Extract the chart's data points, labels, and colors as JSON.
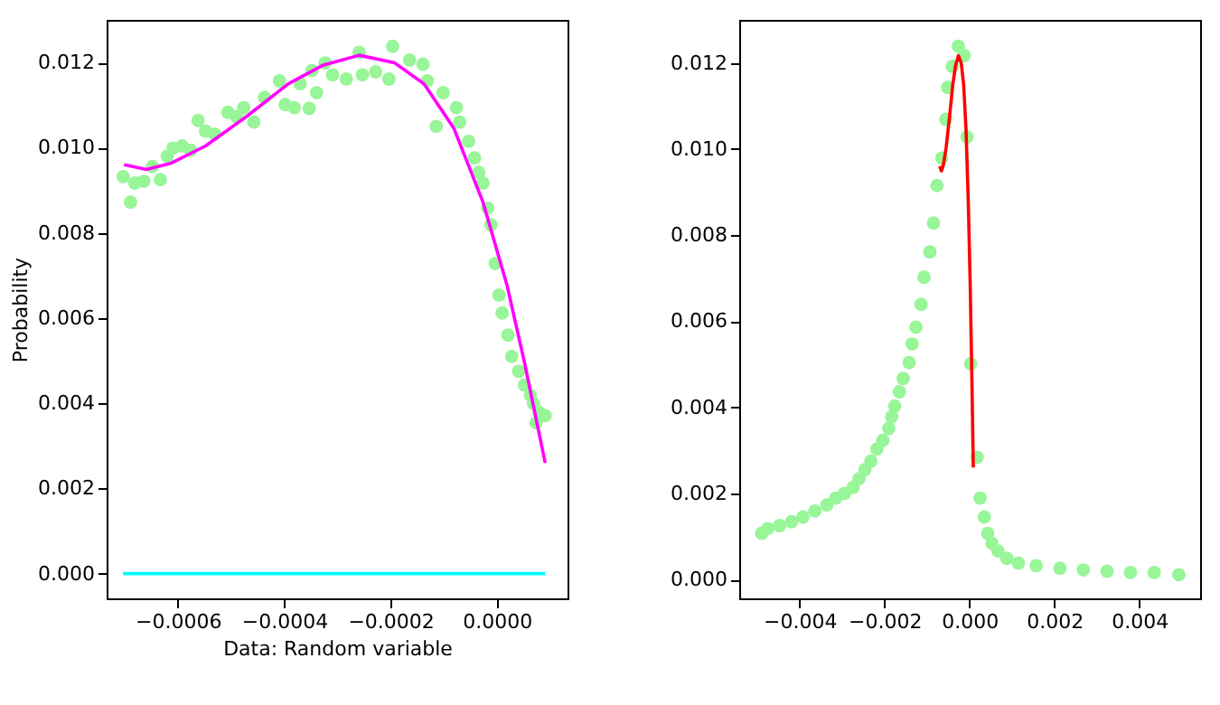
{
  "chart_data": [
    {
      "type": "scatter",
      "xlabel": "Data: Random variable",
      "ylabel": "Probability",
      "grid": false,
      "xlim": [
        -0.000734,
        0.000133
      ],
      "ylim": [
        -0.00058,
        0.013
      ],
      "xticks": [
        {
          "value": -0.0006,
          "label": "−0.0006"
        },
        {
          "value": -0.0004,
          "label": "−0.0004"
        },
        {
          "value": -0.0002,
          "label": "−0.0002"
        },
        {
          "value": 0,
          "label": "0.0000"
        }
      ],
      "yticks": [
        {
          "value": 0,
          "label": "0.000"
        },
        {
          "value": 0.002,
          "label": "0.002"
        },
        {
          "value": 0.004,
          "label": "0.004"
        },
        {
          "value": 0.006,
          "label": "0.006"
        },
        {
          "value": 0.008,
          "label": "0.008"
        },
        {
          "value": 0.01,
          "label": "0.010"
        },
        {
          "value": 0.012,
          "label": "0.012"
        }
      ],
      "series": [
        {
          "marker": "circle",
          "color": "#98f598",
          "x": [
            -0.000703,
            -0.000689,
            -0.000681,
            -0.000664,
            -0.000648,
            -0.000633,
            -0.00062,
            -0.000609,
            -0.000592,
            -0.000576,
            -0.000562,
            -0.000548,
            -0.000531,
            -0.000506,
            -0.00049,
            -0.000476,
            -0.000457,
            -0.000437,
            -0.000409,
            -0.000398,
            -0.000381,
            -0.00037,
            -0.000353,
            -0.000339,
            -0.000348,
            -0.000323,
            -0.000309,
            -0.000283,
            -0.000259,
            -0.000253,
            -0.000228,
            -0.000203,
            -0.000196,
            -0.000164,
            -0.000139,
            -0.000131,
            -0.000114,
            -0.000101,
            -7.6e-05,
            -7e-05,
            -5.3e-05,
            -4.2e-05,
            -3.4e-05,
            -2.6e-05,
            -1.7e-05,
            -1.1e-05,
            -3e-06,
            4e-06,
            1e-05,
            2.1e-05,
            2.8e-05,
            4.1e-05,
            5.2e-05,
            6.3e-05,
            6.9e-05,
            8e-05,
            9.1e-05,
            7.4e-05
          ],
          "values": [
            0.00932,
            0.00872,
            0.00917,
            0.00921,
            0.00956,
            0.00925,
            0.0098,
            0.00999,
            0.01004,
            0.00994,
            0.01064,
            0.01039,
            0.01032,
            0.01083,
            0.01073,
            0.01094,
            0.0106,
            0.01118,
            0.01157,
            0.01101,
            0.01094,
            0.0115,
            0.01092,
            0.01129,
            0.01181,
            0.01199,
            0.01171,
            0.01161,
            0.01224,
            0.01171,
            0.01178,
            0.01161,
            0.01238,
            0.01206,
            0.01196,
            0.01157,
            0.0105,
            0.01129,
            0.01094,
            0.0106,
            0.01015,
            0.00976,
            0.00942,
            0.00917,
            0.00858,
            0.00819,
            0.00728,
            0.00654,
            0.00612,
            0.0056,
            0.0051,
            0.00475,
            0.00443,
            0.00419,
            0.00399,
            0.00378,
            0.00371,
            0.00354
          ]
        },
        {
          "type": "line",
          "marker": "none",
          "line_style": "solid",
          "color": "#ff00ff",
          "x": [
            -0.000701,
            -0.000659,
            -0.000614,
            -0.000548,
            -0.00047,
            -0.000392,
            -0.000326,
            -0.000259,
            -0.000192,
            -0.000137,
            -8.1e-05,
            -2.6e-05,
            1.9e-05,
            5.2e-05,
            9.1e-05
          ],
          "values": [
            0.0096,
            0.00949,
            0.00963,
            0.01004,
            0.01074,
            0.0115,
            0.01194,
            0.01217,
            0.01199,
            0.0115,
            0.01046,
            0.00872,
            0.00678,
            0.00496,
            0.0026
          ]
        },
        {
          "type": "line",
          "marker": "none",
          "line_style": "solid",
          "color": "#00ffff",
          "x": [
            -0.000703,
            9.1e-05
          ],
          "values": [
            0,
            0
          ]
        }
      ]
    },
    {
      "type": "scatter",
      "grid": false,
      "xlim": [
        -0.00542,
        0.00543
      ],
      "ylim": [
        -0.00044,
        0.013
      ],
      "xticks": [
        {
          "value": -0.004,
          "label": "−0.004"
        },
        {
          "value": -0.002,
          "label": "−0.002"
        },
        {
          "value": 0,
          "label": "0.000"
        },
        {
          "value": 0.002,
          "label": "0.002"
        },
        {
          "value": 0.004,
          "label": "0.004"
        }
      ],
      "yticks": [
        {
          "value": 0,
          "label": "0.000"
        },
        {
          "value": 0.002,
          "label": "0.002"
        },
        {
          "value": 0.004,
          "label": "0.004"
        },
        {
          "value": 0.006,
          "label": "0.006"
        },
        {
          "value": 0.008,
          "label": "0.008"
        },
        {
          "value": 0.01,
          "label": "0.010"
        },
        {
          "value": 0.012,
          "label": "0.012"
        }
      ],
      "series": [
        {
          "marker": "circle",
          "color": "#98f598",
          "x": [
            -0.00489,
            -0.00475,
            -0.00447,
            -0.00419,
            -0.00392,
            -0.00364,
            -0.00336,
            -0.00315,
            -0.00294,
            -0.00274,
            -0.0026,
            -0.00246,
            -0.00232,
            -0.00218,
            -0.00204,
            -0.0019,
            -0.00183,
            -0.00176,
            -0.00165,
            -0.00156,
            -0.00142,
            -0.00135,
            -0.00126,
            -0.00114,
            -0.00107,
            -0.000931,
            -0.000847,
            -0.000764,
            -0.000653,
            -0.000556,
            -0.000514,
            -0.000403,
            -0.000264,
            -0.000125,
            -5.6e-05,
            3e-05,
            0.00018,
            0.00025,
            0.00035,
            0.00043,
            0.00053,
            0.00067,
            0.00088,
            0.00115,
            0.00157,
            0.00213,
            0.00268,
            0.00324,
            0.00379,
            0.00435,
            0.00493
          ],
          "values": [
            0.00107,
            0.00118,
            0.00125,
            0.00134,
            0.00145,
            0.00159,
            0.00173,
            0.00189,
            0.002,
            0.00214,
            0.00234,
            0.00255,
            0.00275,
            0.00303,
            0.00323,
            0.00351,
            0.00378,
            0.00403,
            0.00436,
            0.00467,
            0.00504,
            0.00547,
            0.00586,
            0.00639,
            0.00702,
            0.00761,
            0.00828,
            0.00915,
            0.00979,
            0.01069,
            0.01143,
            0.01192,
            0.01239,
            0.01217,
            0.01028,
            0.00501,
            0.00284,
            0.00189,
            0.00145,
            0.00107,
            0.00084,
            0.00066,
            0.00049,
            0.00038,
            0.00032,
            0.00026,
            0.00022,
            0.00019,
            0.00016,
            0.00016,
            0.00011
          ]
        },
        {
          "type": "line",
          "marker": "none",
          "line_style": "solid",
          "color": "#ff0000",
          "x": [
            -0.000701,
            -0.000659,
            -0.000614,
            -0.000548,
            -0.00047,
            -0.000392,
            -0.000326,
            -0.000259,
            -0.000192,
            -0.000137,
            -8.1e-05,
            -2.6e-05,
            1.9e-05,
            5.2e-05,
            9.1e-05
          ],
          "values": [
            0.0096,
            0.00949,
            0.00963,
            0.01004,
            0.01074,
            0.0115,
            0.01194,
            0.01217,
            0.01199,
            0.0115,
            0.01046,
            0.00872,
            0.00678,
            0.00496,
            0.0026
          ]
        }
      ]
    }
  ]
}
